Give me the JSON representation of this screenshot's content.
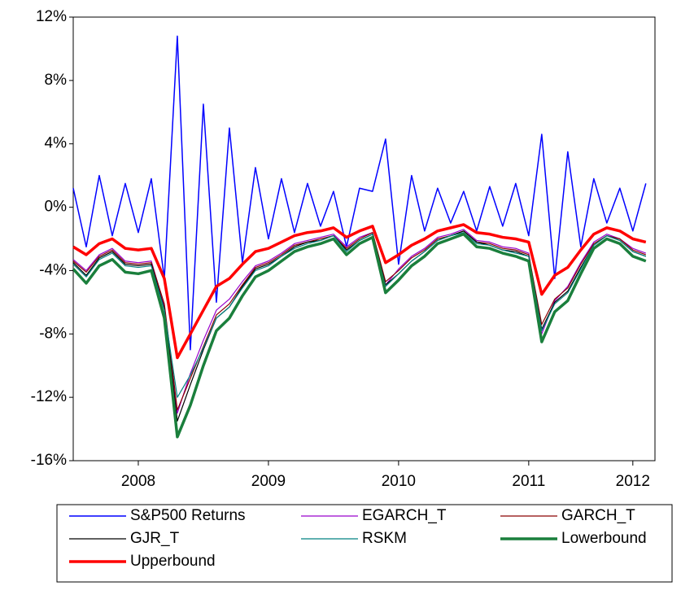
{
  "chart_data": {
    "type": "line",
    "x": [
      2008.0,
      2008.1,
      2008.2,
      2008.3,
      2008.4,
      2008.5,
      2008.6,
      2008.7,
      2008.8,
      2008.9,
      2009.0,
      2009.1,
      2009.2,
      2009.3,
      2009.4,
      2009.5,
      2009.6,
      2009.7,
      2009.8,
      2009.9,
      2010.0,
      2010.1,
      2010.2,
      2010.3,
      2010.4,
      2010.5,
      2010.6,
      2010.7,
      2010.8,
      2010.9,
      2011.0,
      2011.1,
      2011.2,
      2011.3,
      2011.4,
      2011.5,
      2011.6,
      2011.7,
      2011.8,
      2011.9,
      2012.0,
      2012.1,
      2012.2,
      2012.3,
      2012.4
    ],
    "xlim": [
      2008,
      2012.47
    ],
    "xticks": [
      {
        "value": 2008.5,
        "label": "2008"
      },
      {
        "value": 2009.5,
        "label": "2009"
      },
      {
        "value": 2010.5,
        "label": "2010"
      },
      {
        "value": 2011.5,
        "label": "2011"
      },
      {
        "value": 2012.3,
        "label": "2012"
      }
    ],
    "ylim": [
      -16,
      12
    ],
    "yticks": [
      {
        "value": -16,
        "label": "-16%"
      },
      {
        "value": -12,
        "label": "-12%"
      },
      {
        "value": -8,
        "label": "-8%"
      },
      {
        "value": -4,
        "label": "-4%"
      },
      {
        "value": 0,
        "label": "0%"
      },
      {
        "value": 4,
        "label": "4%"
      },
      {
        "value": 8,
        "label": "8%"
      },
      {
        "value": 12,
        "label": "12%"
      }
    ],
    "legend": "bottom",
    "series": [
      {
        "name": "S&P500 Returns",
        "color": "#0000ff",
        "width": 1.5,
        "values": [
          1.2,
          -2.5,
          2.0,
          -1.8,
          1.5,
          -1.6,
          1.8,
          -4.5,
          10.8,
          -9.0,
          6.5,
          -6.0,
          5.0,
          -3.5,
          2.5,
          -2.0,
          1.8,
          -1.6,
          1.5,
          -1.2,
          1.0,
          -2.5,
          1.2,
          1.0,
          4.3,
          -3.6,
          2.0,
          -1.5,
          1.2,
          -1.0,
          1.0,
          -1.5,
          1.3,
          -1.2,
          1.5,
          -1.8,
          4.6,
          -4.5,
          3.5,
          -2.5,
          1.8,
          -1.0,
          1.2,
          -1.5,
          1.5
        ]
      },
      {
        "name": "EGARCH_T",
        "color": "#9900cc",
        "width": 1.2,
        "values": [
          -3.3,
          -4.0,
          -3.0,
          -2.6,
          -3.4,
          -3.5,
          -3.4,
          -6.2,
          -13.0,
          -10.5,
          -8.4,
          -6.5,
          -5.8,
          -4.7,
          -3.7,
          -3.4,
          -2.9,
          -2.3,
          -2.1,
          -1.9,
          -1.7,
          -2.5,
          -1.9,
          -1.6,
          -4.9,
          -3.9,
          -3.1,
          -2.6,
          -1.9,
          -1.7,
          -1.4,
          -2.1,
          -2.2,
          -2.5,
          -2.6,
          -2.9,
          -8.0,
          -5.9,
          -5.0,
          -3.5,
          -2.2,
          -1.7,
          -2.0,
          -2.6,
          -2.9
        ]
      },
      {
        "name": "GARCH_T",
        "color": "#8b0000",
        "width": 1.2,
        "values": [
          -3.4,
          -4.1,
          -3.1,
          -2.7,
          -3.5,
          -3.6,
          -3.5,
          -6.1,
          -12.8,
          -10.8,
          -8.8,
          -6.8,
          -6.1,
          -4.9,
          -3.8,
          -3.5,
          -3.0,
          -2.4,
          -2.2,
          -2.0,
          -1.8,
          -2.6,
          -2.0,
          -1.6,
          -4.7,
          -4.0,
          -3.2,
          -2.7,
          -2.0,
          -1.8,
          -1.5,
          -2.2,
          -2.3,
          -2.6,
          -2.7,
          -3.0,
          -7.4,
          -5.8,
          -5.1,
          -3.6,
          -2.3,
          -1.8,
          -2.0,
          -2.7,
          -3.0
        ]
      },
      {
        "name": "GJR_T",
        "color": "#000000",
        "width": 1.2,
        "values": [
          -3.5,
          -4.3,
          -3.2,
          -2.8,
          -3.6,
          -3.7,
          -3.6,
          -6.4,
          -13.5,
          -11.2,
          -9.0,
          -7.0,
          -6.3,
          -5.0,
          -3.9,
          -3.6,
          -3.1,
          -2.5,
          -2.2,
          -2.1,
          -1.8,
          -2.7,
          -2.1,
          -1.7,
          -4.9,
          -4.2,
          -3.4,
          -2.8,
          -2.1,
          -1.8,
          -1.5,
          -2.2,
          -2.4,
          -2.7,
          -2.8,
          -3.1,
          -7.7,
          -6.0,
          -5.3,
          -3.8,
          -2.4,
          -1.8,
          -2.1,
          -2.8,
          -3.1
        ]
      },
      {
        "name": "RSKM",
        "color": "#008080",
        "width": 1.2,
        "values": [
          -3.6,
          -4.4,
          -3.3,
          -2.9,
          -3.7,
          -3.8,
          -3.7,
          -6.5,
          -12.0,
          -10.6,
          -8.9,
          -7.0,
          -6.3,
          -5.1,
          -4.0,
          -3.7,
          -3.1,
          -2.6,
          -2.3,
          -2.1,
          -1.8,
          -2.8,
          -2.1,
          -1.7,
          -5.0,
          -4.2,
          -3.4,
          -2.8,
          -2.1,
          -1.8,
          -1.6,
          -2.3,
          -2.4,
          -2.7,
          -2.9,
          -3.1,
          -7.8,
          -6.1,
          -5.4,
          -3.9,
          -2.4,
          -1.8,
          -2.1,
          -2.8,
          -3.1
        ]
      },
      {
        "name": "Lowerbound",
        "color": "#1a7f3c",
        "width": 3.5,
        "values": [
          -3.9,
          -4.8,
          -3.7,
          -3.3,
          -4.1,
          -4.2,
          -4.0,
          -7.0,
          -14.5,
          -12.5,
          -10.0,
          -7.8,
          -7.0,
          -5.6,
          -4.4,
          -4.0,
          -3.4,
          -2.8,
          -2.5,
          -2.3,
          -2.0,
          -3.0,
          -2.3,
          -1.9,
          -5.4,
          -4.6,
          -3.7,
          -3.1,
          -2.3,
          -2.0,
          -1.7,
          -2.5,
          -2.6,
          -2.9,
          -3.1,
          -3.4,
          -8.5,
          -6.6,
          -5.9,
          -4.2,
          -2.6,
          -2.0,
          -2.3,
          -3.1,
          -3.4
        ]
      },
      {
        "name": "Upperbound",
        "color": "#ff0000",
        "width": 3.5,
        "values": [
          -2.5,
          -3.0,
          -2.3,
          -2.0,
          -2.6,
          -2.7,
          -2.6,
          -4.5,
          -9.5,
          -8.0,
          -6.5,
          -5.0,
          -4.5,
          -3.6,
          -2.8,
          -2.6,
          -2.2,
          -1.8,
          -1.6,
          -1.5,
          -1.3,
          -1.9,
          -1.5,
          -1.2,
          -3.5,
          -3.0,
          -2.4,
          -2.0,
          -1.5,
          -1.3,
          -1.1,
          -1.6,
          -1.7,
          -1.9,
          -2.0,
          -2.2,
          -5.5,
          -4.3,
          -3.8,
          -2.7,
          -1.7,
          -1.3,
          -1.5,
          -2.0,
          -2.2
        ]
      }
    ]
  }
}
